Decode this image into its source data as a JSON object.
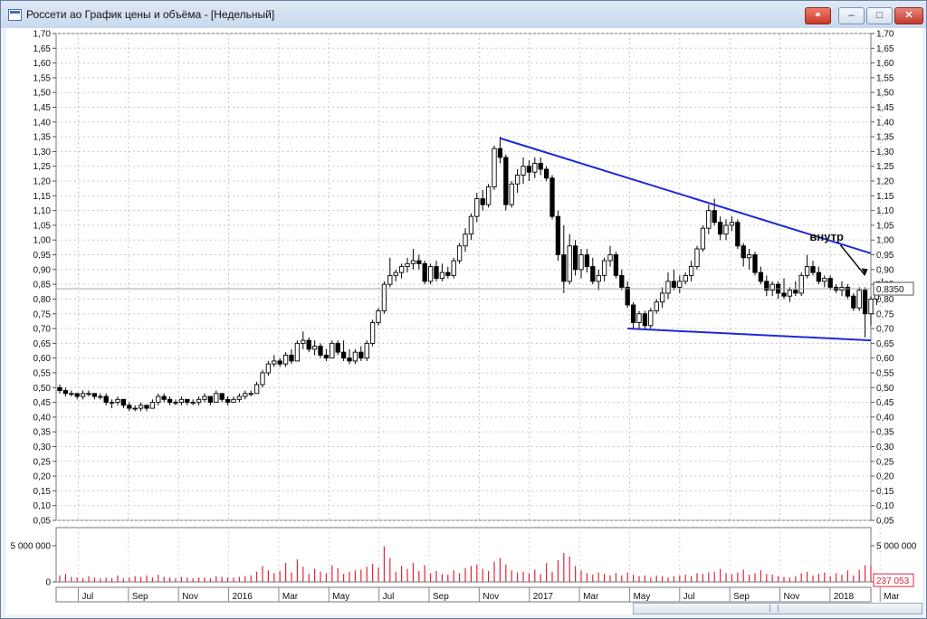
{
  "window": {
    "title": "Россети ао График цены и объёма - [Недельный]",
    "buttons": {
      "link": "⚭",
      "minimize": "–",
      "maximize": "□",
      "close": "✕"
    }
  },
  "chart_data": {
    "type": "candlestick",
    "price_axis": {
      "min": 0.05,
      "max": 1.7,
      "step": 0.05,
      "ticks": [
        "0,05",
        "0,10",
        "0,15",
        "0,20",
        "0,25",
        "0,30",
        "0,35",
        "0,40",
        "0,45",
        "0,50",
        "0,55",
        "0,60",
        "0,65",
        "0,70",
        "0,75",
        "0,80",
        "0,85",
        "0,90",
        "0,95",
        "1,00",
        "1,05",
        "1,10",
        "1,15",
        "1,20",
        "1,25",
        "1,30",
        "1,35",
        "1,40",
        "1,45",
        "1,50",
        "1,55",
        "1,60",
        "1,65",
        "1,70"
      ]
    },
    "current_price": {
      "value": 0.835,
      "label": "0,8350"
    },
    "volume_axis": {
      "max": 6500000,
      "ticks": [
        {
          "value": 5000000,
          "label": "5 000 000"
        },
        {
          "value": 0,
          "label": "0"
        }
      ]
    },
    "current_volume": {
      "value": 237053,
      "label": "237 053"
    },
    "x_labels": [
      "Jul",
      "Sep",
      "Nov",
      "2016",
      "Mar",
      "May",
      "Jul",
      "Sep",
      "Nov",
      "2017",
      "Mar",
      "May",
      "Jul",
      "Sep",
      "Nov",
      "2018",
      "Mar"
    ],
    "candles": [
      [
        0.5,
        0.51,
        0.48,
        0.49
      ],
      [
        0.49,
        0.5,
        0.47,
        0.48
      ],
      [
        0.48,
        0.49,
        0.47,
        0.48
      ],
      [
        0.48,
        0.48,
        0.46,
        0.47
      ],
      [
        0.47,
        0.49,
        0.46,
        0.48
      ],
      [
        0.48,
        0.49,
        0.47,
        0.48
      ],
      [
        0.48,
        0.48,
        0.46,
        0.47
      ],
      [
        0.47,
        0.48,
        0.46,
        0.47
      ],
      [
        0.47,
        0.48,
        0.44,
        0.45
      ],
      [
        0.45,
        0.46,
        0.43,
        0.45
      ],
      [
        0.45,
        0.47,
        0.44,
        0.46
      ],
      [
        0.46,
        0.46,
        0.43,
        0.44
      ],
      [
        0.44,
        0.45,
        0.42,
        0.43
      ],
      [
        0.43,
        0.44,
        0.42,
        0.43
      ],
      [
        0.43,
        0.45,
        0.42,
        0.44
      ],
      [
        0.44,
        0.44,
        0.42,
        0.43
      ],
      [
        0.43,
        0.46,
        0.43,
        0.45
      ],
      [
        0.45,
        0.48,
        0.44,
        0.47
      ],
      [
        0.47,
        0.48,
        0.45,
        0.46
      ],
      [
        0.46,
        0.47,
        0.44,
        0.45
      ],
      [
        0.45,
        0.46,
        0.44,
        0.45
      ],
      [
        0.45,
        0.47,
        0.44,
        0.46
      ],
      [
        0.46,
        0.46,
        0.44,
        0.45
      ],
      [
        0.45,
        0.46,
        0.44,
        0.45
      ],
      [
        0.45,
        0.47,
        0.44,
        0.46
      ],
      [
        0.46,
        0.48,
        0.45,
        0.47
      ],
      [
        0.47,
        0.47,
        0.44,
        0.45
      ],
      [
        0.45,
        0.49,
        0.45,
        0.48
      ],
      [
        0.48,
        0.48,
        0.45,
        0.46
      ],
      [
        0.46,
        0.47,
        0.44,
        0.45
      ],
      [
        0.45,
        0.47,
        0.45,
        0.46
      ],
      [
        0.46,
        0.48,
        0.45,
        0.47
      ],
      [
        0.47,
        0.49,
        0.46,
        0.48
      ],
      [
        0.48,
        0.49,
        0.47,
        0.48
      ],
      [
        0.48,
        0.52,
        0.48,
        0.51
      ],
      [
        0.51,
        0.56,
        0.5,
        0.55
      ],
      [
        0.55,
        0.59,
        0.54,
        0.58
      ],
      [
        0.58,
        0.61,
        0.57,
        0.59
      ],
      [
        0.59,
        0.6,
        0.57,
        0.58
      ],
      [
        0.58,
        0.62,
        0.57,
        0.61
      ],
      [
        0.61,
        0.63,
        0.58,
        0.59
      ],
      [
        0.59,
        0.66,
        0.59,
        0.65
      ],
      [
        0.65,
        0.69,
        0.63,
        0.66
      ],
      [
        0.66,
        0.67,
        0.62,
        0.63
      ],
      [
        0.63,
        0.66,
        0.61,
        0.64
      ],
      [
        0.64,
        0.65,
        0.6,
        0.61
      ],
      [
        0.61,
        0.63,
        0.59,
        0.6
      ],
      [
        0.6,
        0.66,
        0.6,
        0.65
      ],
      [
        0.65,
        0.66,
        0.61,
        0.62
      ],
      [
        0.62,
        0.66,
        0.59,
        0.6
      ],
      [
        0.6,
        0.63,
        0.58,
        0.59
      ],
      [
        0.59,
        0.63,
        0.58,
        0.62
      ],
      [
        0.62,
        0.64,
        0.59,
        0.6
      ],
      [
        0.6,
        0.66,
        0.59,
        0.65
      ],
      [
        0.65,
        0.73,
        0.64,
        0.72
      ],
      [
        0.72,
        0.77,
        0.71,
        0.76
      ],
      [
        0.76,
        0.86,
        0.75,
        0.85
      ],
      [
        0.85,
        0.94,
        0.84,
        0.88
      ],
      [
        0.88,
        0.9,
        0.86,
        0.89
      ],
      [
        0.89,
        0.92,
        0.87,
        0.91
      ],
      [
        0.91,
        0.94,
        0.89,
        0.92
      ],
      [
        0.92,
        0.97,
        0.9,
        0.93
      ],
      [
        0.93,
        0.95,
        0.9,
        0.92
      ],
      [
        0.92,
        0.93,
        0.85,
        0.86
      ],
      [
        0.86,
        0.92,
        0.85,
        0.91
      ],
      [
        0.91,
        0.93,
        0.86,
        0.87
      ],
      [
        0.87,
        0.92,
        0.86,
        0.89
      ],
      [
        0.89,
        0.91,
        0.87,
        0.88
      ],
      [
        0.88,
        0.94,
        0.87,
        0.93
      ],
      [
        0.93,
        0.99,
        0.92,
        0.98
      ],
      [
        0.98,
        1.04,
        0.96,
        1.02
      ],
      [
        1.02,
        1.09,
        1.0,
        1.08
      ],
      [
        1.08,
        1.16,
        1.06,
        1.14
      ],
      [
        1.14,
        1.17,
        1.1,
        1.12
      ],
      [
        1.12,
        1.19,
        1.11,
        1.18
      ],
      [
        1.18,
        1.32,
        1.17,
        1.31
      ],
      [
        1.31,
        1.35,
        1.26,
        1.28
      ],
      [
        1.28,
        1.29,
        1.1,
        1.12
      ],
      [
        1.12,
        1.2,
        1.11,
        1.19
      ],
      [
        1.19,
        1.24,
        1.16,
        1.22
      ],
      [
        1.22,
        1.28,
        1.19,
        1.25
      ],
      [
        1.25,
        1.27,
        1.2,
        1.23
      ],
      [
        1.23,
        1.28,
        1.21,
        1.26
      ],
      [
        1.26,
        1.28,
        1.22,
        1.24
      ],
      [
        1.24,
        1.25,
        1.2,
        1.21
      ],
      [
        1.21,
        1.22,
        1.07,
        1.08
      ],
      [
        1.08,
        1.1,
        0.93,
        0.95
      ],
      [
        0.95,
        1.05,
        0.82,
        0.86
      ],
      [
        0.86,
        1.02,
        0.85,
        0.98
      ],
      [
        0.98,
        1.0,
        0.88,
        0.9
      ],
      [
        0.9,
        0.97,
        0.87,
        0.95
      ],
      [
        0.95,
        0.97,
        0.89,
        0.91
      ],
      [
        0.91,
        0.94,
        0.85,
        0.86
      ],
      [
        0.86,
        0.9,
        0.83,
        0.88
      ],
      [
        0.88,
        0.94,
        0.86,
        0.93
      ],
      [
        0.93,
        0.98,
        0.91,
        0.95
      ],
      [
        0.95,
        0.96,
        0.87,
        0.88
      ],
      [
        0.88,
        0.9,
        0.83,
        0.84
      ],
      [
        0.84,
        0.86,
        0.77,
        0.78
      ],
      [
        0.78,
        0.79,
        0.7,
        0.72
      ],
      [
        0.72,
        0.76,
        0.7,
        0.75
      ],
      [
        0.75,
        0.76,
        0.7,
        0.71
      ],
      [
        0.71,
        0.77,
        0.7,
        0.76
      ],
      [
        0.76,
        0.8,
        0.75,
        0.79
      ],
      [
        0.79,
        0.84,
        0.77,
        0.82
      ],
      [
        0.82,
        0.89,
        0.8,
        0.86
      ],
      [
        0.86,
        0.9,
        0.83,
        0.84
      ],
      [
        0.84,
        0.88,
        0.82,
        0.86
      ],
      [
        0.86,
        0.89,
        0.85,
        0.88
      ],
      [
        0.88,
        0.93,
        0.86,
        0.91
      ],
      [
        0.91,
        0.98,
        0.9,
        0.97
      ],
      [
        0.97,
        1.05,
        0.96,
        1.04
      ],
      [
        1.04,
        1.12,
        1.02,
        1.1
      ],
      [
        1.1,
        1.14,
        1.05,
        1.06
      ],
      [
        1.06,
        1.08,
        1.0,
        1.02
      ],
      [
        1.02,
        1.07,
        1.0,
        1.05
      ],
      [
        1.05,
        1.08,
        1.03,
        1.06
      ],
      [
        1.06,
        1.07,
        0.97,
        0.98
      ],
      [
        0.98,
        0.99,
        0.91,
        0.94
      ],
      [
        0.94,
        0.97,
        0.9,
        0.95
      ],
      [
        0.95,
        0.96,
        0.88,
        0.89
      ],
      [
        0.89,
        0.91,
        0.85,
        0.86
      ],
      [
        0.86,
        0.88,
        0.81,
        0.83
      ],
      [
        0.83,
        0.86,
        0.81,
        0.85
      ],
      [
        0.85,
        0.86,
        0.8,
        0.82
      ],
      [
        0.82,
        0.87,
        0.8,
        0.81
      ],
      [
        0.81,
        0.84,
        0.79,
        0.83
      ],
      [
        0.83,
        0.86,
        0.81,
        0.82
      ],
      [
        0.82,
        0.89,
        0.81,
        0.88
      ],
      [
        0.88,
        0.95,
        0.87,
        0.91
      ],
      [
        0.91,
        0.93,
        0.88,
        0.89
      ],
      [
        0.89,
        0.91,
        0.85,
        0.86
      ],
      [
        0.86,
        0.88,
        0.84,
        0.87
      ],
      [
        0.87,
        0.88,
        0.83,
        0.84
      ],
      [
        0.84,
        0.85,
        0.82,
        0.83
      ],
      [
        0.83,
        0.86,
        0.81,
        0.84
      ],
      [
        0.84,
        0.85,
        0.8,
        0.81
      ],
      [
        0.81,
        0.82,
        0.76,
        0.77
      ],
      [
        0.77,
        0.84,
        0.76,
        0.83
      ],
      [
        0.83,
        0.84,
        0.67,
        0.75
      ],
      [
        0.75,
        0.81,
        0.71,
        0.8
      ],
      [
        0.8,
        0.86,
        0.78,
        0.85
      ],
      [
        0.85,
        0.87,
        0.82,
        0.835
      ]
    ],
    "volumes": [
      0.9,
      1.1,
      0.7,
      0.6,
      0.5,
      0.8,
      0.6,
      0.5,
      0.6,
      0.5,
      0.9,
      0.5,
      0.6,
      0.8,
      0.7,
      0.9,
      0.6,
      1.0,
      0.7,
      0.6,
      0.5,
      0.7,
      0.6,
      0.5,
      0.6,
      0.6,
      0.5,
      0.8,
      0.7,
      0.6,
      0.6,
      0.7,
      0.8,
      0.9,
      1.4,
      2.2,
      1.6,
      1.2,
      1.5,
      2.6,
      1.3,
      3.1,
      2.1,
      1.1,
      1.8,
      1.4,
      1.2,
      2.3,
      1.9,
      1.1,
      1.4,
      1.6,
      1.7,
      2.1,
      2.5,
      2.0,
      4.9,
      3.3,
      1.4,
      2.2,
      1.8,
      2.6,
      1.5,
      2.3,
      1.2,
      1.5,
      1.1,
      1.0,
      1.6,
      1.2,
      1.9,
      2.2,
      2.4,
      1.8,
      1.5,
      2.8,
      3.3,
      2.4,
      1.6,
      1.3,
      1.4,
      1.2,
      1.7,
      1.1,
      2.6,
      1.4,
      3.0,
      4.0,
      3.5,
      2.2,
      1.6,
      1.2,
      1.0,
      1.3,
      1.1,
      0.9,
      1.2,
      0.9,
      1.3,
      1.0,
      0.8,
      0.9,
      0.6,
      0.9,
      0.8,
      0.6,
      0.8,
      0.9,
      1.0,
      0.8,
      1.2,
      1.1,
      1.3,
      1.4,
      1.8,
      1.2,
      1.1,
      1.3,
      1.7,
      1.0,
      1.2,
      1.6,
      1.1,
      1.0,
      0.8,
      0.7,
      0.6,
      0.8,
      1.2,
      1.4,
      0.9,
      1.1,
      1.3,
      0.8,
      1.2,
      1.0,
      1.6,
      0.9,
      1.7,
      2.3,
      2.2,
      1.2,
      1.1
    ],
    "annotations": [
      {
        "type": "trendline",
        "name": "upper",
        "from": [
          76,
          1.345
        ],
        "to": [
          140,
          0.955
        ],
        "color": "#1f28d6"
      },
      {
        "type": "trendline",
        "name": "lower",
        "from": [
          98,
          0.7
        ],
        "to": [
          140,
          0.66
        ],
        "color": "#1f28d6"
      },
      {
        "type": "text",
        "text": "внутр",
        "at": [
          136,
          0.98
        ],
        "arrow_to": [
          139,
          0.88
        ]
      }
    ]
  }
}
